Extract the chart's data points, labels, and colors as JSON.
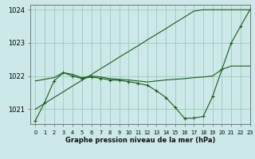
{
  "title": "Graphe pression niveau de la mer (hPa)",
  "background_color": "#cce8e8",
  "grid_color": "#99ccbb",
  "line_color": "#1a5c1a",
  "xlim": [
    -0.5,
    23
  ],
  "ylim": [
    1020.55,
    1024.15
  ],
  "yticks": [
    1021,
    1022,
    1023,
    1024
  ],
  "ytick_labels": [
    "1021",
    "1022",
    "1023",
    "1024"
  ],
  "xtick_labels": [
    "0",
    "1",
    "2",
    "3",
    "4",
    "5",
    "6",
    "7",
    "8",
    "9",
    "10",
    "11",
    "12",
    "13",
    "14",
    "15",
    "16",
    "17",
    "18",
    "19",
    "20",
    "21",
    "22",
    "23"
  ],
  "series": [
    {
      "x": [
        0,
        1,
        2,
        3,
        4,
        5,
        6,
        7,
        8,
        9,
        10,
        11,
        12,
        13,
        14,
        15,
        16,
        17,
        18,
        19,
        20,
        21,
        22,
        23
      ],
      "y": [
        1021.0,
        1021.17,
        1021.35,
        1021.52,
        1021.7,
        1021.87,
        1022.04,
        1022.22,
        1022.39,
        1022.57,
        1022.74,
        1022.91,
        1023.09,
        1023.26,
        1023.43,
        1023.61,
        1023.78,
        1023.96,
        1024.0,
        1024.0,
        1024.0,
        1024.0,
        1024.0,
        1024.0
      ],
      "has_marker": false
    },
    {
      "x": [
        0,
        1,
        2,
        3,
        4,
        5,
        6,
        7,
        8,
        9,
        10,
        11,
        12,
        13,
        14,
        15,
        16,
        17,
        18,
        19,
        20,
        21,
        22,
        23
      ],
      "y": [
        1021.85,
        1021.9,
        1021.95,
        1022.1,
        1022.05,
        1021.95,
        1022.0,
        1021.97,
        1021.92,
        1021.9,
        1021.88,
        1021.85,
        1021.82,
        1021.85,
        1021.88,
        1021.9,
        1021.92,
        1021.95,
        1021.97,
        1022.0,
        1022.2,
        1022.3,
        1022.3,
        1022.3
      ],
      "has_marker": false
    },
    {
      "x": [
        0,
        1,
        2,
        3,
        4,
        5,
        6,
        7,
        8,
        9,
        10,
        11,
        12,
        13,
        14,
        15,
        16,
        17,
        18,
        19,
        20,
        21,
        22,
        23
      ],
      "y": [
        1020.65,
        1021.2,
        1021.85,
        1022.1,
        1022.0,
        1021.92,
        1021.97,
        1021.93,
        1021.88,
        1021.87,
        1021.83,
        1021.78,
        1021.72,
        1021.55,
        1021.35,
        1021.05,
        1020.72,
        1020.73,
        1020.78,
        1021.38,
        1022.2,
        1023.0,
        1023.5,
        1024.0
      ],
      "has_marker": true
    }
  ]
}
